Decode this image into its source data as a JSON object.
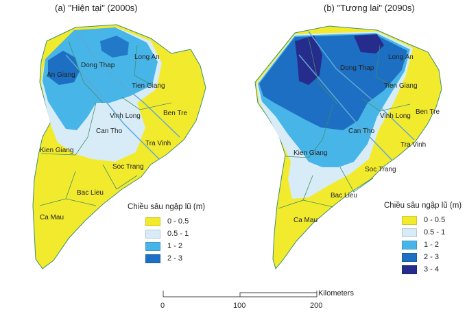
{
  "colors": {
    "c0": "#f2ea2d",
    "c1": "#d8ecf7",
    "c2": "#48b5e8",
    "c3": "#1c6fc2",
    "c4": "#262c8c",
    "border": "#3d8f6b",
    "river": "#5fa8d4"
  },
  "maps": [
    {
      "title": "(a) \"Hiện tại\" (2000s)",
      "legend_title": "Chiều sâu ngập lũ (m)",
      "legend": [
        {
          "label": "0 - 0.5",
          "color": "#f2ea2d"
        },
        {
          "label": "0.5 - 1",
          "color": "#d8ecf7"
        },
        {
          "label": "1 - 2",
          "color": "#48b5e8"
        },
        {
          "label": "2 - 3",
          "color": "#1c6fc2"
        }
      ],
      "provinces": [
        "An Giang",
        "Dong Thap",
        "Long An",
        "Tien Giang",
        "Vinh Long",
        "Ben Tre",
        "Can Tho",
        "Tra Vinh",
        "Kien Giang",
        "Soc Trang",
        "Bac Lieu",
        "Ca Mau"
      ]
    },
    {
      "title": "(b) \"Tương lai\" (2090s)",
      "legend_title": "Chiều sâu ngập lũ (m)",
      "legend": [
        {
          "label": "0 - 0.5",
          "color": "#f2ea2d"
        },
        {
          "label": "0.5 - 1",
          "color": "#d8ecf7"
        },
        {
          "label": "1 - 2",
          "color": "#48b5e8"
        },
        {
          "label": "2 - 3",
          "color": "#1c6fc2"
        },
        {
          "label": "3 - 4",
          "color": "#262c8c"
        }
      ],
      "provinces": [
        "Dong Thap",
        "Long An",
        "Tien Giang",
        "Vinh Long",
        "Ben Tre",
        "Can Tho",
        "Tra Vinh",
        "Kien Giang",
        "Soc Trang",
        "Bac Lieu",
        "Ca Mau"
      ]
    }
  ],
  "scale_bar": {
    "ticks": [
      "0",
      "100",
      "200"
    ],
    "unit": "Kilometers"
  }
}
